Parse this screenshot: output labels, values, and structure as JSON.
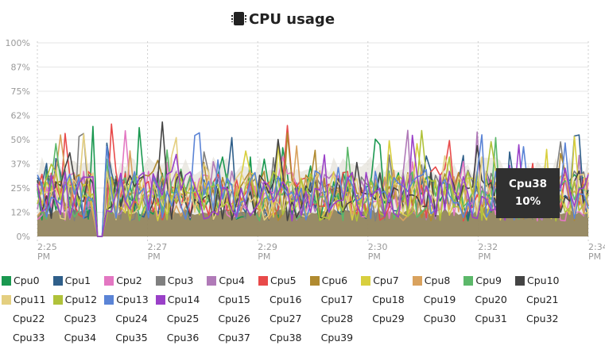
{
  "chart_data": {
    "type": "line",
    "title": "CPU usage",
    "title_icon": "cpu-chip-icon",
    "y_ticks": [
      "100%",
      "87%",
      "75%",
      "62%",
      "50%",
      "37%",
      "25%",
      "12%",
      "0%"
    ],
    "ylim": [
      0,
      100
    ],
    "x_ticks": [
      {
        "time": "2:25",
        "ampm": "PM"
      },
      {
        "time": "2:27",
        "ampm": "PM"
      },
      {
        "time": "2:29",
        "ampm": "PM"
      },
      {
        "time": "2:30",
        "ampm": "PM"
      },
      {
        "time": "2:32",
        "ampm": "PM"
      },
      {
        "time": "2:34",
        "ampm": "PM"
      }
    ],
    "grid": true,
    "legend_position": "bottom",
    "series": [
      {
        "name": "Cpu0",
        "color": "#1a9850"
      },
      {
        "name": "Cpu1",
        "color": "#2f5f8a"
      },
      {
        "name": "Cpu2",
        "color": "#e377c2"
      },
      {
        "name": "Cpu3",
        "color": "#7f7f7f"
      },
      {
        "name": "Cpu4",
        "color": "#b07ab8"
      },
      {
        "name": "Cpu5",
        "color": "#e84a4a"
      },
      {
        "name": "Cpu6",
        "color": "#b08a30"
      },
      {
        "name": "Cpu7",
        "color": "#d8cf3e"
      },
      {
        "name": "Cpu8",
        "color": "#d9a25e"
      },
      {
        "name": "Cpu9",
        "color": "#5cb86a"
      },
      {
        "name": "Cpu10",
        "color": "#444444"
      },
      {
        "name": "Cpu11",
        "color": "#e4cf80"
      },
      {
        "name": "Cpu12",
        "color": "#b0c23a"
      },
      {
        "name": "Cpu13",
        "color": "#5b84d6"
      },
      {
        "name": "Cpu14",
        "color": "#9a40c8"
      },
      {
        "name": "Cpu15",
        "color": ""
      },
      {
        "name": "Cpu16",
        "color": ""
      },
      {
        "name": "Cpu17",
        "color": ""
      },
      {
        "name": "Cpu18",
        "color": ""
      },
      {
        "name": "Cpu19",
        "color": ""
      },
      {
        "name": "Cpu20",
        "color": ""
      },
      {
        "name": "Cpu21",
        "color": ""
      },
      {
        "name": "Cpu22",
        "color": ""
      },
      {
        "name": "Cpu23",
        "color": ""
      },
      {
        "name": "Cpu24",
        "color": ""
      },
      {
        "name": "Cpu25",
        "color": ""
      },
      {
        "name": "Cpu26",
        "color": ""
      },
      {
        "name": "Cpu27",
        "color": ""
      },
      {
        "name": "Cpu28",
        "color": ""
      },
      {
        "name": "Cpu29",
        "color": ""
      },
      {
        "name": "Cpu30",
        "color": ""
      },
      {
        "name": "Cpu31",
        "color": ""
      },
      {
        "name": "Cpu32",
        "color": ""
      },
      {
        "name": "Cpu33",
        "color": ""
      },
      {
        "name": "Cpu34",
        "color": ""
      },
      {
        "name": "Cpu35",
        "color": ""
      },
      {
        "name": "Cpu36",
        "color": ""
      },
      {
        "name": "Cpu37",
        "color": ""
      },
      {
        "name": "Cpu38",
        "color": ""
      },
      {
        "name": "Cpu39",
        "color": ""
      }
    ],
    "tooltip": {
      "series": "Cpu38",
      "value": "10%"
    }
  }
}
